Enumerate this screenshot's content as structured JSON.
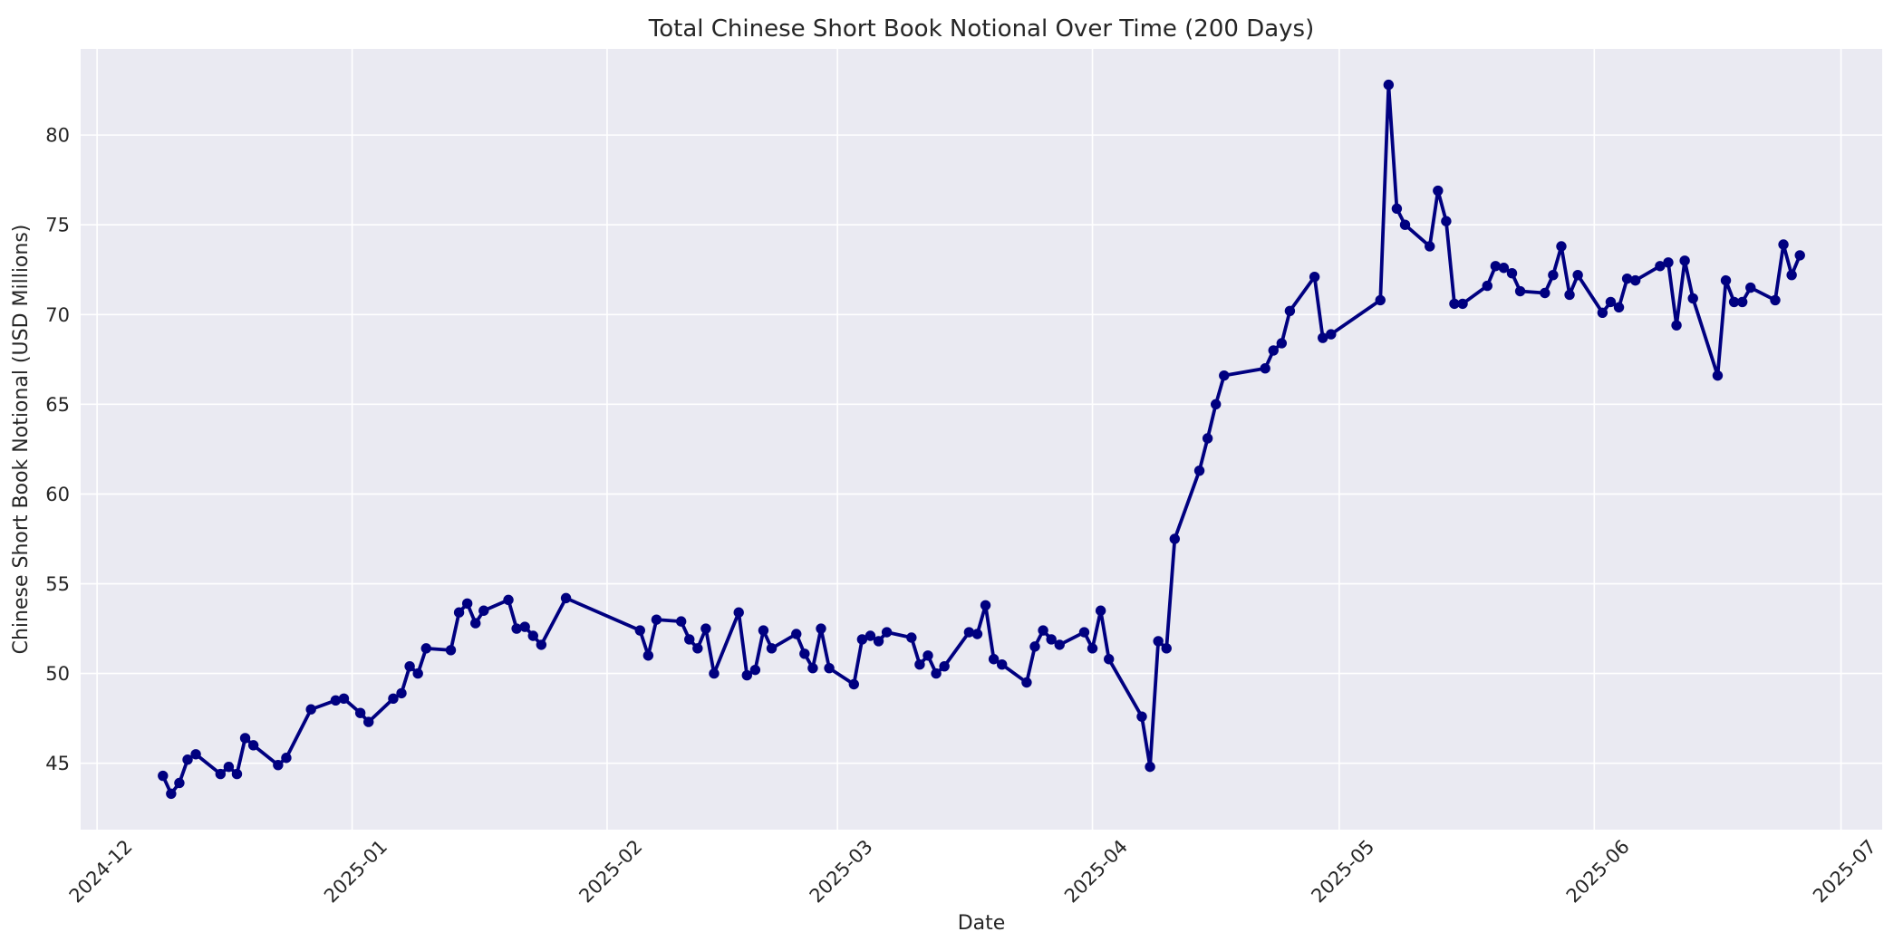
{
  "chart_data": {
    "type": "line",
    "title": "Total Chinese Short Book Notional Over Time (200 Days)",
    "xlabel": "Date",
    "ylabel": "Chinese Short Book Notional (USD Millions)",
    "legend": "none",
    "grid": "on",
    "line_color": "#000080",
    "marker": "circle",
    "marker_color": "#000080",
    "plot_bg_color": "#EAEAF2",
    "grid_color": "#FFFFFF",
    "text_color": "#262626",
    "figure_bg_color": "#FFFFFF",
    "x_domain": [
      "2024-11-29",
      "2025-07-06"
    ],
    "y_domain": [
      41.3,
      84.8
    ],
    "y_ticks": [
      45,
      50,
      55,
      60,
      65,
      70,
      75,
      80
    ],
    "x_ticks": [
      {
        "date": "2024-12-01",
        "label": "2024-12"
      },
      {
        "date": "2025-01-01",
        "label": "2025-01"
      },
      {
        "date": "2025-02-01",
        "label": "2025-02"
      },
      {
        "date": "2025-03-01",
        "label": "2025-03"
      },
      {
        "date": "2025-04-01",
        "label": "2025-04"
      },
      {
        "date": "2025-05-01",
        "label": "2025-05"
      },
      {
        "date": "2025-06-01",
        "label": "2025-06"
      },
      {
        "date": "2025-07-01",
        "label": "2025-07"
      }
    ],
    "points": [
      [
        "2024-12-09",
        44.3
      ],
      [
        "2024-12-10",
        43.3
      ],
      [
        "2024-12-11",
        43.9
      ],
      [
        "2024-12-12",
        45.2
      ],
      [
        "2024-12-13",
        45.5
      ],
      [
        "2024-12-16",
        44.4
      ],
      [
        "2024-12-17",
        44.8
      ],
      [
        "2024-12-18",
        44.4
      ],
      [
        "2024-12-19",
        46.4
      ],
      [
        "2024-12-20",
        46.0
      ],
      [
        "2024-12-23",
        44.9
      ],
      [
        "2024-12-24",
        45.3
      ],
      [
        "2024-12-27",
        48.0
      ],
      [
        "2024-12-30",
        48.5
      ],
      [
        "2024-12-31",
        48.6
      ],
      [
        "2025-01-02",
        47.8
      ],
      [
        "2025-01-03",
        47.3
      ],
      [
        "2025-01-06",
        48.6
      ],
      [
        "2025-01-07",
        48.9
      ],
      [
        "2025-01-08",
        50.4
      ],
      [
        "2025-01-09",
        50.0
      ],
      [
        "2025-01-10",
        51.4
      ],
      [
        "2025-01-13",
        51.3
      ],
      [
        "2025-01-14",
        53.4
      ],
      [
        "2025-01-15",
        53.9
      ],
      [
        "2025-01-16",
        52.8
      ],
      [
        "2025-01-17",
        53.5
      ],
      [
        "2025-01-20",
        54.1
      ],
      [
        "2025-01-21",
        52.5
      ],
      [
        "2025-01-22",
        52.6
      ],
      [
        "2025-01-23",
        52.1
      ],
      [
        "2025-01-24",
        51.6
      ],
      [
        "2025-01-27",
        54.2
      ],
      [
        "2025-02-05",
        52.4
      ],
      [
        "2025-02-06",
        51.0
      ],
      [
        "2025-02-07",
        53.0
      ],
      [
        "2025-02-10",
        52.9
      ],
      [
        "2025-02-11",
        51.9
      ],
      [
        "2025-02-12",
        51.4
      ],
      [
        "2025-02-13",
        52.5
      ],
      [
        "2025-02-14",
        50.0
      ],
      [
        "2025-02-17",
        53.4
      ],
      [
        "2025-02-18",
        49.9
      ],
      [
        "2025-02-19",
        50.2
      ],
      [
        "2025-02-20",
        52.4
      ],
      [
        "2025-02-21",
        51.4
      ],
      [
        "2025-02-24",
        52.2
      ],
      [
        "2025-02-25",
        51.1
      ],
      [
        "2025-02-26",
        50.3
      ],
      [
        "2025-02-27",
        52.5
      ],
      [
        "2025-02-28",
        50.3
      ],
      [
        "2025-03-03",
        49.4
      ],
      [
        "2025-03-04",
        51.9
      ],
      [
        "2025-03-05",
        52.1
      ],
      [
        "2025-03-06",
        51.8
      ],
      [
        "2025-03-07",
        52.3
      ],
      [
        "2025-03-10",
        52.0
      ],
      [
        "2025-03-11",
        50.5
      ],
      [
        "2025-03-12",
        51.0
      ],
      [
        "2025-03-13",
        50.0
      ],
      [
        "2025-03-14",
        50.4
      ],
      [
        "2025-03-17",
        52.3
      ],
      [
        "2025-03-18",
        52.2
      ],
      [
        "2025-03-19",
        53.8
      ],
      [
        "2025-03-20",
        50.8
      ],
      [
        "2025-03-21",
        50.5
      ],
      [
        "2025-03-24",
        49.5
      ],
      [
        "2025-03-25",
        51.5
      ],
      [
        "2025-03-26",
        52.4
      ],
      [
        "2025-03-27",
        51.9
      ],
      [
        "2025-03-28",
        51.6
      ],
      [
        "2025-03-31",
        52.3
      ],
      [
        "2025-04-01",
        51.4
      ],
      [
        "2025-04-02",
        53.5
      ],
      [
        "2025-04-03",
        50.8
      ],
      [
        "2025-04-07",
        47.6
      ],
      [
        "2025-04-08",
        44.8
      ],
      [
        "2025-04-09",
        51.8
      ],
      [
        "2025-04-10",
        51.4
      ],
      [
        "2025-04-11",
        57.5
      ],
      [
        "2025-04-14",
        61.3
      ],
      [
        "2025-04-15",
        63.1
      ],
      [
        "2025-04-16",
        65.0
      ],
      [
        "2025-04-17",
        66.6
      ],
      [
        "2025-04-22",
        67.0
      ],
      [
        "2025-04-23",
        68.0
      ],
      [
        "2025-04-24",
        68.4
      ],
      [
        "2025-04-25",
        70.2
      ],
      [
        "2025-04-28",
        72.1
      ],
      [
        "2025-04-29",
        68.7
      ],
      [
        "2025-04-30",
        68.9
      ],
      [
        "2025-05-06",
        70.8
      ],
      [
        "2025-05-07",
        82.8
      ],
      [
        "2025-05-08",
        75.9
      ],
      [
        "2025-05-09",
        75.0
      ],
      [
        "2025-05-12",
        73.8
      ],
      [
        "2025-05-13",
        76.9
      ],
      [
        "2025-05-14",
        75.2
      ],
      [
        "2025-05-15",
        70.6
      ],
      [
        "2025-05-16",
        70.6
      ],
      [
        "2025-05-19",
        71.6
      ],
      [
        "2025-05-20",
        72.7
      ],
      [
        "2025-05-21",
        72.6
      ],
      [
        "2025-05-22",
        72.3
      ],
      [
        "2025-05-23",
        71.3
      ],
      [
        "2025-05-26",
        71.2
      ],
      [
        "2025-05-27",
        72.2
      ],
      [
        "2025-05-28",
        73.8
      ],
      [
        "2025-05-29",
        71.1
      ],
      [
        "2025-05-30",
        72.2
      ],
      [
        "2025-06-02",
        70.1
      ],
      [
        "2025-06-03",
        70.7
      ],
      [
        "2025-06-04",
        70.4
      ],
      [
        "2025-06-05",
        72.0
      ],
      [
        "2025-06-06",
        71.9
      ],
      [
        "2025-06-09",
        72.7
      ],
      [
        "2025-06-10",
        72.9
      ],
      [
        "2025-06-11",
        69.4
      ],
      [
        "2025-06-12",
        73.0
      ],
      [
        "2025-06-13",
        70.9
      ],
      [
        "2025-06-16",
        66.6
      ],
      [
        "2025-06-17",
        71.9
      ],
      [
        "2025-06-18",
        70.7
      ],
      [
        "2025-06-19",
        70.7
      ],
      [
        "2025-06-20",
        71.5
      ],
      [
        "2025-06-23",
        70.8
      ],
      [
        "2025-06-24",
        73.9
      ],
      [
        "2025-06-25",
        72.2
      ],
      [
        "2025-06-26",
        73.3
      ]
    ]
  }
}
